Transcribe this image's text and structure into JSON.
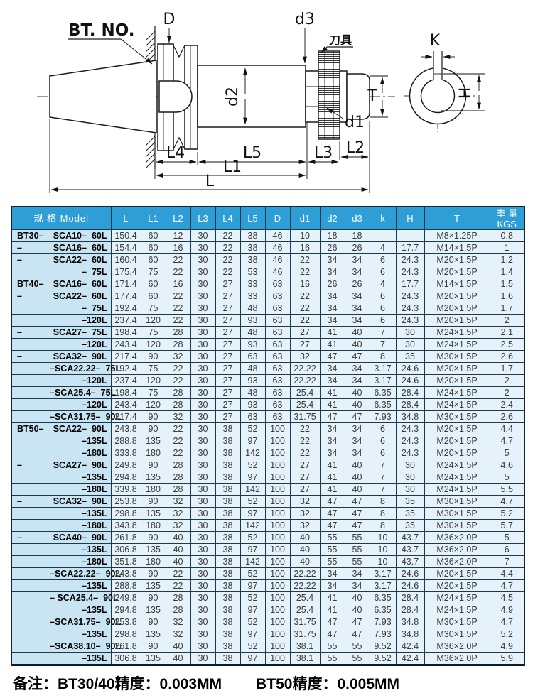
{
  "drawing": {
    "labels": {
      "bt_no": "BT. NO.",
      "d_flange": "D",
      "d3": "d3",
      "tool": "刀具",
      "k": "K",
      "h": "H",
      "d2": "d2",
      "d1": "d1",
      "t": "T",
      "l4": "L4",
      "l5": "L5",
      "l3": "L3",
      "l2": "L2",
      "l1": "L1",
      "l": "L"
    }
  },
  "table": {
    "header": {
      "model": "规 格 Model",
      "cols": [
        "L",
        "L1",
        "L2",
        "L3",
        "L4",
        "L5",
        "D",
        "d1",
        "d2",
        "d3",
        "k",
        "H",
        "T"
      ],
      "weight": [
        "重 量",
        "KGS"
      ]
    },
    "rows": [
      {
        "model": [
          "BT30–",
          "SCA10–",
          "60L"
        ],
        "values": [
          "150.4",
          "60",
          "12",
          "30",
          "22",
          "38",
          "46",
          "10",
          "18",
          "18",
          "–",
          "–",
          "M8×1.25P",
          "0.8"
        ]
      },
      {
        "model": [
          "–",
          "SCA16–",
          "60L"
        ],
        "values": [
          "154.4",
          "60",
          "16",
          "30",
          "22",
          "38",
          "46",
          "16",
          "26",
          "26",
          "4",
          "17.7",
          "M14×1.5P",
          "1"
        ]
      },
      {
        "model": [
          "–",
          "SCA22–",
          "60L"
        ],
        "values": [
          "160.4",
          "60",
          "22",
          "30",
          "22",
          "38",
          "46",
          "22",
          "34",
          "34",
          "6",
          "24.3",
          "M20×1.5P",
          "1.2"
        ]
      },
      {
        "model": [
          "",
          "–",
          "75L"
        ],
        "values": [
          "175.4",
          "75",
          "22",
          "30",
          "22",
          "53",
          "46",
          "22",
          "34",
          "34",
          "6",
          "24.3",
          "M20×1.5P",
          "1.4"
        ]
      },
      {
        "model": [
          "BT40–",
          "SCA16–",
          "60L"
        ],
        "values": [
          "171.4",
          "60",
          "16",
          "30",
          "27",
          "33",
          "63",
          "16",
          "26",
          "26",
          "4",
          "17.7",
          "M14×1.5P",
          "1.5"
        ]
      },
      {
        "model": [
          "–",
          "SCA22–",
          "60L"
        ],
        "values": [
          "177.4",
          "60",
          "22",
          "30",
          "27",
          "33",
          "63",
          "22",
          "34",
          "34",
          "6",
          "24.3",
          "M20×1.5P",
          "1.6"
        ]
      },
      {
        "model": [
          "",
          "–",
          "75L"
        ],
        "values": [
          "192.4",
          "75",
          "22",
          "30",
          "27",
          "48",
          "63",
          "22",
          "34",
          "34",
          "6",
          "24.3",
          "M20×1.5P",
          "1.7"
        ]
      },
      {
        "model": [
          "",
          "",
          "–120L"
        ],
        "values": [
          "237.4",
          "120",
          "22",
          "30",
          "27",
          "93",
          "63",
          "22",
          "34",
          "34",
          "6",
          "24.3",
          "M20×1.5P",
          "2"
        ]
      },
      {
        "model": [
          "–",
          "SCA27–",
          "75L"
        ],
        "values": [
          "198.4",
          "75",
          "28",
          "30",
          "27",
          "48",
          "63",
          "27",
          "41",
          "40",
          "7",
          "30",
          "M24×1.5P",
          "2.1"
        ]
      },
      {
        "model": [
          "",
          "",
          "–120L"
        ],
        "values": [
          "243.4",
          "120",
          "28",
          "30",
          "27",
          "93",
          "63",
          "27",
          "41",
          "40",
          "7",
          "30",
          "M24×1.5P",
          "2.5"
        ]
      },
      {
        "model": [
          "–",
          "SCA32–",
          "90L"
        ],
        "values": [
          "217.4",
          "90",
          "32",
          "30",
          "27",
          "63",
          "63",
          "32",
          "47",
          "47",
          "8",
          "35",
          "M30×1.5P",
          "2.6"
        ]
      },
      {
        "model": [
          "",
          "–SCA22.22–",
          "75L"
        ],
        "values": [
          "192.4",
          "75",
          "22",
          "30",
          "27",
          "48",
          "63",
          "22.22",
          "34",
          "34",
          "3.17",
          "24.6",
          "M20×1.5P",
          "1.7"
        ]
      },
      {
        "model": [
          "",
          "",
          "–120L"
        ],
        "values": [
          "237.4",
          "120",
          "22",
          "30",
          "27",
          "93",
          "63",
          "22.22",
          "34",
          "34",
          "3.17",
          "24.6",
          "M20×1.5P",
          "2"
        ]
      },
      {
        "model": [
          "",
          "–SCA25.4–",
          "75L"
        ],
        "values": [
          "198.4",
          "75",
          "28",
          "30",
          "27",
          "48",
          "63",
          "25.4",
          "41",
          "40",
          "6.35",
          "28.4",
          "M24×1.5P",
          "2"
        ]
      },
      {
        "model": [
          "",
          "",
          "–120L"
        ],
        "values": [
          "243.4",
          "120",
          "28",
          "30",
          "27",
          "93",
          "63",
          "25.4",
          "41",
          "40",
          "6.35",
          "28.4",
          "M24×1.5P",
          "2.4"
        ]
      },
      {
        "model": [
          "",
          "–SCA31.75–",
          "90L"
        ],
        "values": [
          "217.4",
          "90",
          "32",
          "30",
          "27",
          "63",
          "63",
          "31.75",
          "47",
          "47",
          "7.93",
          "34.8",
          "M30×1.5P",
          "2.6"
        ]
      },
      {
        "model": [
          "BT50–",
          "SCA22–",
          "90L"
        ],
        "values": [
          "243.8",
          "90",
          "22",
          "30",
          "38",
          "52",
          "100",
          "22",
          "34",
          "34",
          "6",
          "24.3",
          "M20×1.5P",
          "4.4"
        ]
      },
      {
        "model": [
          "",
          "",
          "–135L"
        ],
        "values": [
          "288.8",
          "135",
          "22",
          "30",
          "38",
          "97",
          "100",
          "22",
          "34",
          "34",
          "6",
          "24.3",
          "M20×1.5P",
          "4.7"
        ]
      },
      {
        "model": [
          "",
          "",
          "–180L"
        ],
        "values": [
          "333.8",
          "180",
          "22",
          "30",
          "38",
          "142",
          "100",
          "22",
          "34",
          "34",
          "6",
          "24.3",
          "M20×1.5P",
          "5"
        ]
      },
      {
        "model": [
          "–",
          "SCA27–",
          "90L"
        ],
        "values": [
          "249.8",
          "90",
          "28",
          "30",
          "38",
          "52",
          "100",
          "27",
          "41",
          "40",
          "7",
          "30",
          "M24×1.5P",
          "4.6"
        ]
      },
      {
        "model": [
          "",
          "",
          "–135L"
        ],
        "values": [
          "294.8",
          "135",
          "28",
          "30",
          "38",
          "97",
          "100",
          "27",
          "41",
          "40",
          "7",
          "30",
          "M24×1.5P",
          "5"
        ]
      },
      {
        "model": [
          "",
          "",
          "–180L"
        ],
        "values": [
          "339.8",
          "180",
          "28",
          "30",
          "38",
          "142",
          "100",
          "27",
          "41",
          "40",
          "7",
          "30",
          "M24×1.5P",
          "5.5"
        ]
      },
      {
        "model": [
          "–",
          "SCA32–",
          "90L"
        ],
        "values": [
          "253.8",
          "90",
          "32",
          "30",
          "38",
          "52",
          "100",
          "32",
          "47",
          "47",
          "8",
          "35",
          "M30×1.5P",
          "4.7"
        ]
      },
      {
        "model": [
          "",
          "",
          "–135L"
        ],
        "values": [
          "298.8",
          "135",
          "32",
          "30",
          "38",
          "97",
          "100",
          "32",
          "47",
          "47",
          "8",
          "35",
          "M30×1.5P",
          "5.2"
        ]
      },
      {
        "model": [
          "",
          "",
          "–180L"
        ],
        "values": [
          "343.8",
          "180",
          "32",
          "30",
          "38",
          "142",
          "100",
          "32",
          "47",
          "47",
          "8",
          "35",
          "M30×1.5P",
          "5.7"
        ]
      },
      {
        "model": [
          "–",
          "SCA40–",
          "90L"
        ],
        "values": [
          "261.8",
          "90",
          "40",
          "30",
          "38",
          "52",
          "100",
          "40",
          "55",
          "55",
          "10",
          "43.7",
          "M36×2.0P",
          "5"
        ]
      },
      {
        "model": [
          "",
          "",
          "–135L"
        ],
        "values": [
          "306.8",
          "135",
          "40",
          "30",
          "38",
          "97",
          "100",
          "40",
          "55",
          "55",
          "10",
          "43.7",
          "M36×2.0P",
          "6"
        ]
      },
      {
        "model": [
          "",
          "",
          "–180L"
        ],
        "values": [
          "351.8",
          "180",
          "40",
          "30",
          "38",
          "142",
          "100",
          "40",
          "55",
          "55",
          "10",
          "43.7",
          "M36×2.0P",
          "7"
        ]
      },
      {
        "model": [
          "",
          "–SCA22.22–",
          "90L"
        ],
        "values": [
          "243.8",
          "90",
          "22",
          "30",
          "38",
          "52",
          "100",
          "22.22",
          "34",
          "34",
          "3.17",
          "24.6",
          "M20×1.5P",
          "4.4"
        ]
      },
      {
        "model": [
          "",
          "",
          "–135L"
        ],
        "values": [
          "288.8",
          "135",
          "22",
          "30",
          "38",
          "97",
          "100",
          "22.22",
          "34",
          "34",
          "3.17",
          "24.6",
          "M20×1.5P",
          "4.7"
        ]
      },
      {
        "model": [
          "",
          "– SCA25.4–",
          "90L"
        ],
        "values": [
          "249.8",
          "90",
          "28",
          "30",
          "38",
          "52",
          "100",
          "25.4",
          "41",
          "40",
          "6.35",
          "28.4",
          "M24×1.5P",
          "4.5"
        ]
      },
      {
        "model": [
          "",
          "",
          "–135L"
        ],
        "values": [
          "294.8",
          "135",
          "28",
          "30",
          "38",
          "97",
          "100",
          "25.4",
          "41",
          "40",
          "6.35",
          "28.4",
          "M24×1.5P",
          "4.9"
        ]
      },
      {
        "model": [
          "",
          "–SCA31.75–",
          "90L"
        ],
        "values": [
          "253.8",
          "90",
          "32",
          "30",
          "38",
          "52",
          "100",
          "31.75",
          "47",
          "47",
          "7.93",
          "34.8",
          "M30×1.5P",
          "4.7"
        ]
      },
      {
        "model": [
          "",
          "",
          "–135L"
        ],
        "values": [
          "298.8",
          "135",
          "32",
          "30",
          "38",
          "97",
          "100",
          "31.75",
          "47",
          "47",
          "7.93",
          "34.8",
          "M30×1.5P",
          "5.2"
        ]
      },
      {
        "model": [
          "",
          "–SCA38.10–",
          "90L"
        ],
        "values": [
          "261.8",
          "90",
          "40",
          "30",
          "38",
          "52",
          "100",
          "38.1",
          "55",
          "55",
          "9.52",
          "42.4",
          "M36×2.0P",
          "4.9"
        ]
      },
      {
        "model": [
          "",
          "",
          "–135L"
        ],
        "values": [
          "306.8",
          "135",
          "40",
          "30",
          "38",
          "97",
          "100",
          "38.1",
          "55",
          "55",
          "9.52",
          "42.4",
          "M36×2.0P",
          "5.9"
        ]
      }
    ]
  },
  "footnote": {
    "left": "备注：BT30/40精度：0.003MM",
    "right": "BT50精度：0.005MM"
  },
  "colors": {
    "header_bg": "#2e9fd6",
    "model_col_bg": "#c9e5f4",
    "cell_bg": "#e5f2fa",
    "grid": "#1c3a4e"
  }
}
